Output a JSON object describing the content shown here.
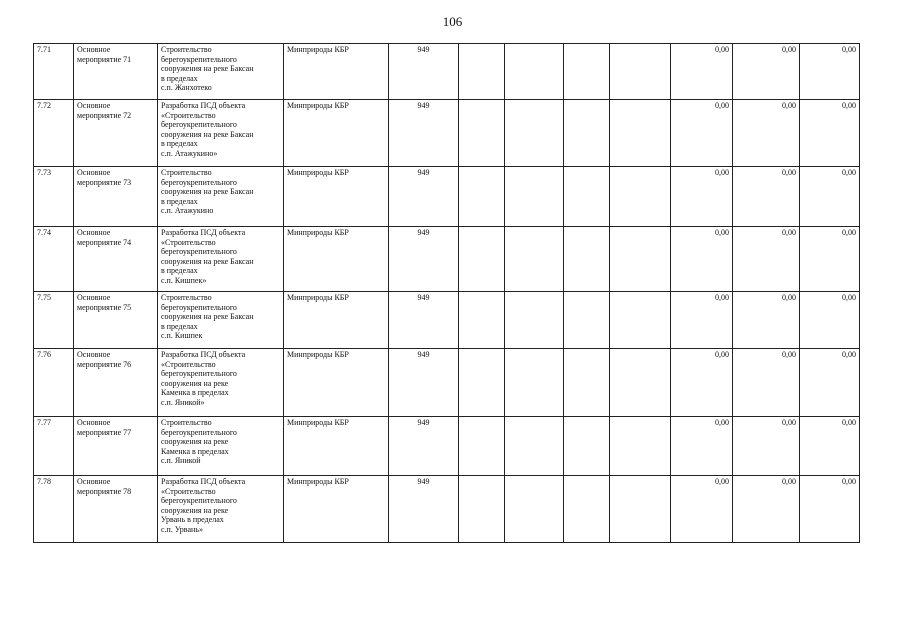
{
  "page_number": "106",
  "rows": [
    {
      "num": "7.71",
      "type": "Основное мероприятие 71",
      "desc": "Строительство\nберегоукрепительного\nсооружения на реке Баксан\nв пределах\nс.п. Жанхотеко",
      "org": "Минприроды КБР",
      "code": "949",
      "v1": "0,00",
      "v2": "0,00",
      "v3": "0,00"
    },
    {
      "num": "7.72",
      "type": "Основное мероприятие 72",
      "desc": "Разработка ПСД объекта\n«Строительство\nберегоукрепительного\nсооружения на реке Баксан\nв пределах\nс.п. Атажукино»",
      "org": "Минприроды КБР",
      "code": "949",
      "v1": "0,00",
      "v2": "0,00",
      "v3": "0,00"
    },
    {
      "num": "7.73",
      "type": "Основное мероприятие 73",
      "desc": "Строительство\nберегоукрепительного\nсооружения на реке Баксан\nв пределах\n с.п. Атажукино",
      "org": "Минприроды КБР",
      "code": "949",
      "v1": "0,00",
      "v2": "0,00",
      "v3": "0,00"
    },
    {
      "num": "7.74",
      "type": "Основное мероприятие 74",
      "desc": "Разработка ПСД объекта\n«Строительство\nберегоукрепительного\nсооружения на реке Баксан\nв пределах\nс.п. Кишпек»",
      "org": "Минприроды КБР",
      "code": "949",
      "v1": "0,00",
      "v2": "0,00",
      "v3": "0,00"
    },
    {
      "num": "7.75",
      "type": "Основное мероприятие 75",
      "desc": "Строительство\nберегоукрепительного\nсооружения на реке Баксан\nв пределах\n с.п. Кишпек",
      "org": "Минприроды КБР",
      "code": "949",
      "v1": "0,00",
      "v2": "0,00",
      "v3": "0,00"
    },
    {
      "num": "7.76",
      "type": "Основное мероприятие 76",
      "desc": "Разработка ПСД объекта\n«Строительство\nберегоукрепительного\nсооружения на реке\nКаменка в пределах\nс.п. Яникой»",
      "org": "Минприроды КБР",
      "code": "949",
      "v1": "0,00",
      "v2": "0,00",
      "v3": "0,00"
    },
    {
      "num": "7.77",
      "type": "Основное мероприятие 77",
      "desc": "Строительство\nберегоукрепительного\nсооружения на реке\nКаменка в пределах\nс.п. Яникой",
      "org": "Минприроды КБР",
      "code": "949",
      "v1": "0,00",
      "v2": "0,00",
      "v3": "0,00"
    },
    {
      "num": "7.78",
      "type": "Основное мероприятие 78",
      "desc": "Разработка ПСД объекта\n«Строительство\nберегоукрепительного\nсооружения на реке\nУрвань в пределах\nс.п. Урвань»",
      "org": "Минприроды КБР",
      "code": "949",
      "v1": "0,00",
      "v2": "0,00",
      "v3": "0,00"
    }
  ]
}
